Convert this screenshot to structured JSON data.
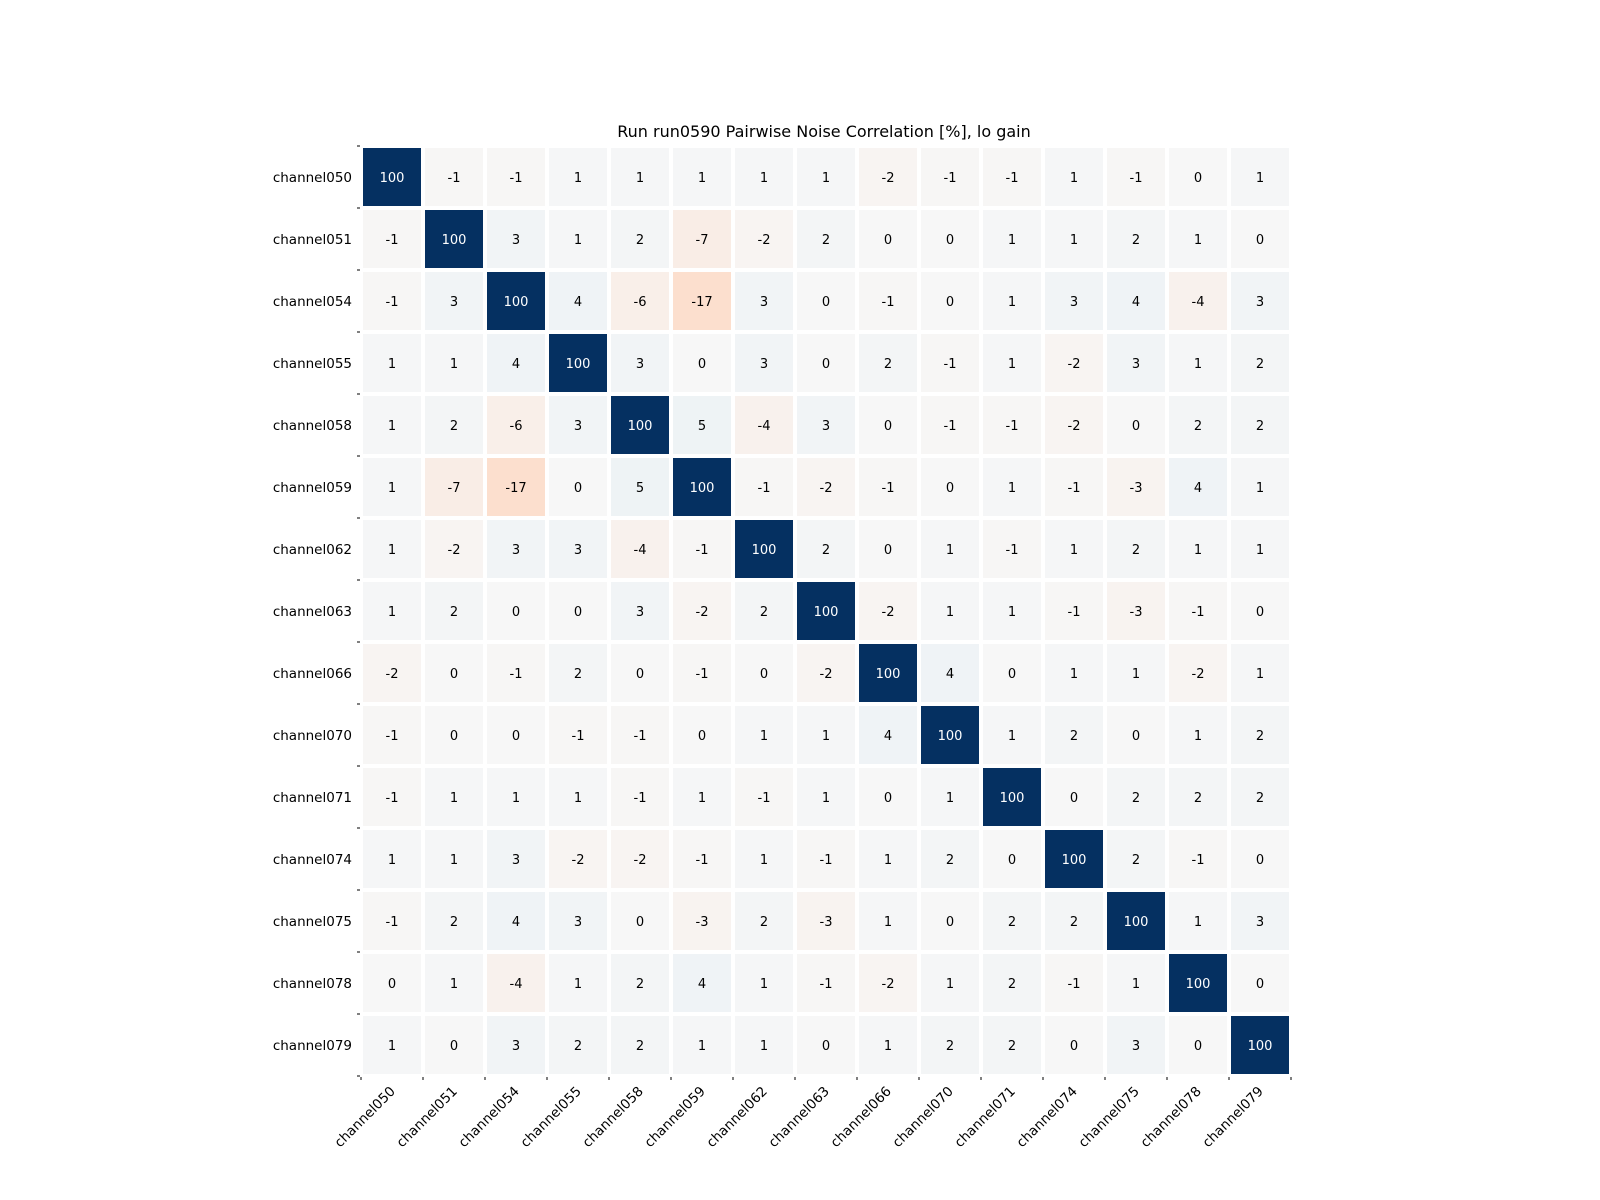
{
  "chart_data": {
    "type": "heatmap",
    "title": "Run run0590 Pairwise Noise Correlation [%], lo gain",
    "xlabel": "",
    "ylabel": "",
    "labels": [
      "channel050",
      "channel051",
      "channel054",
      "channel055",
      "channel058",
      "channel059",
      "channel062",
      "channel063",
      "channel066",
      "channel070",
      "channel071",
      "channel074",
      "channel075",
      "channel078",
      "channel079"
    ],
    "values": [
      [
        100,
        -1,
        -1,
        1,
        1,
        1,
        1,
        1,
        -2,
        -1,
        -1,
        1,
        -1,
        0,
        1
      ],
      [
        -1,
        100,
        3,
        1,
        2,
        -7,
        -2,
        2,
        0,
        0,
        1,
        1,
        2,
        1,
        0
      ],
      [
        -1,
        3,
        100,
        4,
        -6,
        -17,
        3,
        0,
        -1,
        0,
        1,
        3,
        4,
        -4,
        3
      ],
      [
        1,
        1,
        4,
        100,
        3,
        0,
        3,
        0,
        2,
        -1,
        1,
        -2,
        3,
        1,
        2
      ],
      [
        1,
        2,
        -6,
        3,
        100,
        5,
        -4,
        3,
        0,
        -1,
        -1,
        -2,
        0,
        2,
        2
      ],
      [
        1,
        -7,
        -17,
        0,
        5,
        100,
        -1,
        -2,
        -1,
        0,
        1,
        -1,
        -3,
        4,
        1
      ],
      [
        1,
        -2,
        3,
        3,
        -4,
        -1,
        100,
        2,
        0,
        1,
        -1,
        1,
        2,
        1,
        1
      ],
      [
        1,
        2,
        0,
        0,
        3,
        -2,
        2,
        100,
        -2,
        1,
        1,
        -1,
        -3,
        -1,
        0
      ],
      [
        -2,
        0,
        -1,
        2,
        0,
        -1,
        0,
        -2,
        100,
        4,
        0,
        1,
        1,
        -2,
        1
      ],
      [
        -1,
        0,
        0,
        -1,
        -1,
        0,
        1,
        1,
        4,
        100,
        1,
        2,
        0,
        1,
        2
      ],
      [
        -1,
        1,
        1,
        1,
        -1,
        1,
        -1,
        1,
        0,
        1,
        100,
        0,
        2,
        2,
        2
      ],
      [
        1,
        1,
        3,
        -2,
        -2,
        -1,
        1,
        -1,
        1,
        2,
        0,
        100,
        2,
        -1,
        0
      ],
      [
        -1,
        2,
        4,
        3,
        0,
        -3,
        2,
        -3,
        1,
        0,
        2,
        2,
        100,
        1,
        3
      ],
      [
        0,
        1,
        -4,
        1,
        2,
        4,
        1,
        -1,
        -2,
        1,
        2,
        -1,
        1,
        100,
        0
      ],
      [
        1,
        0,
        3,
        2,
        2,
        1,
        1,
        0,
        1,
        2,
        2,
        0,
        3,
        0,
        100
      ]
    ],
    "colormap": "RdBu",
    "vmin": -100,
    "vmax": 100,
    "colorbar": false,
    "grid": false
  }
}
